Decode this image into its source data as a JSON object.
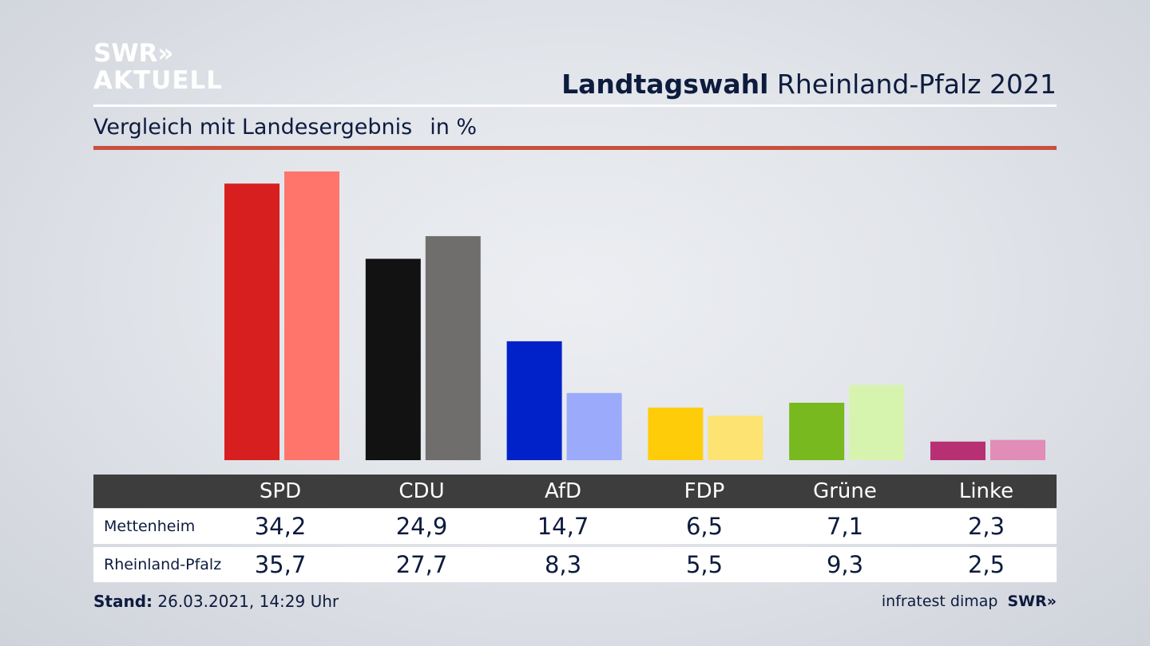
{
  "brand": {
    "line1": "SWR»",
    "line2": "AKTUELL"
  },
  "headline": {
    "bold": "Landtagswahl",
    "rest": " Rheinland-Pfalz 2021"
  },
  "subtitle": {
    "text": "Vergleich mit Landesergebnis",
    "unit": "in %"
  },
  "footer": {
    "label": "Stand:",
    "value": " 26.03.2021, 14:29 Uhr"
  },
  "source": {
    "text": "infratest dimap",
    "logo": "SWR»"
  },
  "chart_data": {
    "type": "bar",
    "title": "Landtagswahl Rheinland-Pfalz 2021",
    "subtitle": "Vergleich mit Landesergebnis",
    "unit": "in %",
    "categories": [
      "SPD",
      "CDU",
      "AfD",
      "FDP",
      "Grüne",
      "Linke"
    ],
    "series": [
      {
        "name": "Mettenheim",
        "values": [
          34.2,
          24.9,
          14.7,
          6.5,
          7.1,
          2.3
        ],
        "labels": [
          "34,2",
          "24,9",
          "14,7",
          "6,5",
          "7,1",
          "2,3"
        ]
      },
      {
        "name": "Rheinland-Pfalz",
        "values": [
          35.7,
          27.7,
          8.3,
          5.5,
          9.3,
          2.5
        ],
        "labels": [
          "35,7",
          "27,7",
          "8,3",
          "5,5",
          "9,3",
          "2,5"
        ]
      }
    ],
    "colors": {
      "Mettenheim": [
        "#d71f20",
        "#121212",
        "#0022c8",
        "#ffcc0a",
        "#77b91e",
        "#b83074"
      ],
      "Rheinland-Pfalz": [
        "#ff756c",
        "#706e6c",
        "#9baafb",
        "#fde372",
        "#d6f4ae",
        "#e28cb8"
      ]
    },
    "ylim": [
      0,
      35.7
    ],
    "grid": false,
    "legend": "table-below"
  }
}
